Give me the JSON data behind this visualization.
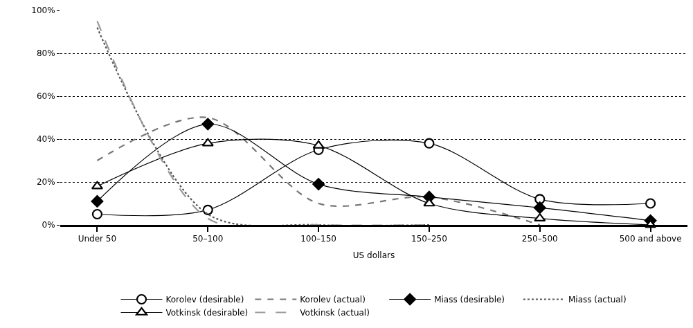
{
  "chart_data": {
    "type": "line",
    "xlabel": "US dollars",
    "categories": [
      "Under 50",
      "50–100",
      "100–150",
      "150–250",
      "250–500",
      "500 and above"
    ],
    "ylim": [
      0,
      100
    ],
    "yticks": [
      {
        "value": 0,
        "label": "0%"
      },
      {
        "value": 20,
        "label": "20%"
      },
      {
        "value": 40,
        "label": "40%"
      },
      {
        "value": 60,
        "label": "60%"
      },
      {
        "value": 80,
        "label": "80%"
      },
      {
        "value": 100,
        "label": "100%"
      }
    ],
    "grid": "y",
    "legend": "bottom",
    "series": [
      {
        "name": "Korolev (desirable)",
        "color": "#000000",
        "marker": "circle",
        "line_style": "solid",
        "values": [
          5,
          7,
          35,
          38,
          12,
          10
        ]
      },
      {
        "name": "Korolev (actual)",
        "color": "#777777",
        "marker": "none",
        "line_style": "dashed",
        "values": [
          30,
          50,
          10,
          13,
          0,
          null
        ]
      },
      {
        "name": "Miass (desirable)",
        "color": "#000000",
        "marker": "diamond",
        "line_style": "solid",
        "values": [
          11,
          47,
          19,
          13,
          8,
          2
        ]
      },
      {
        "name": "Miass (actual)",
        "color": "#555555",
        "marker": "none",
        "line_style": "dotted",
        "values": [
          92,
          5,
          0,
          0,
          null,
          null
        ]
      },
      {
        "name": "Votkinsk (desirable)",
        "color": "#000000",
        "marker": "triangle",
        "line_style": "solid",
        "values": [
          18,
          38,
          37,
          10,
          3,
          0
        ]
      },
      {
        "name": "Votkinsk (actual)",
        "color": "#999999",
        "marker": "none",
        "line_style": "longdash",
        "values": [
          95,
          3,
          0,
          0,
          null,
          null
        ]
      }
    ]
  }
}
